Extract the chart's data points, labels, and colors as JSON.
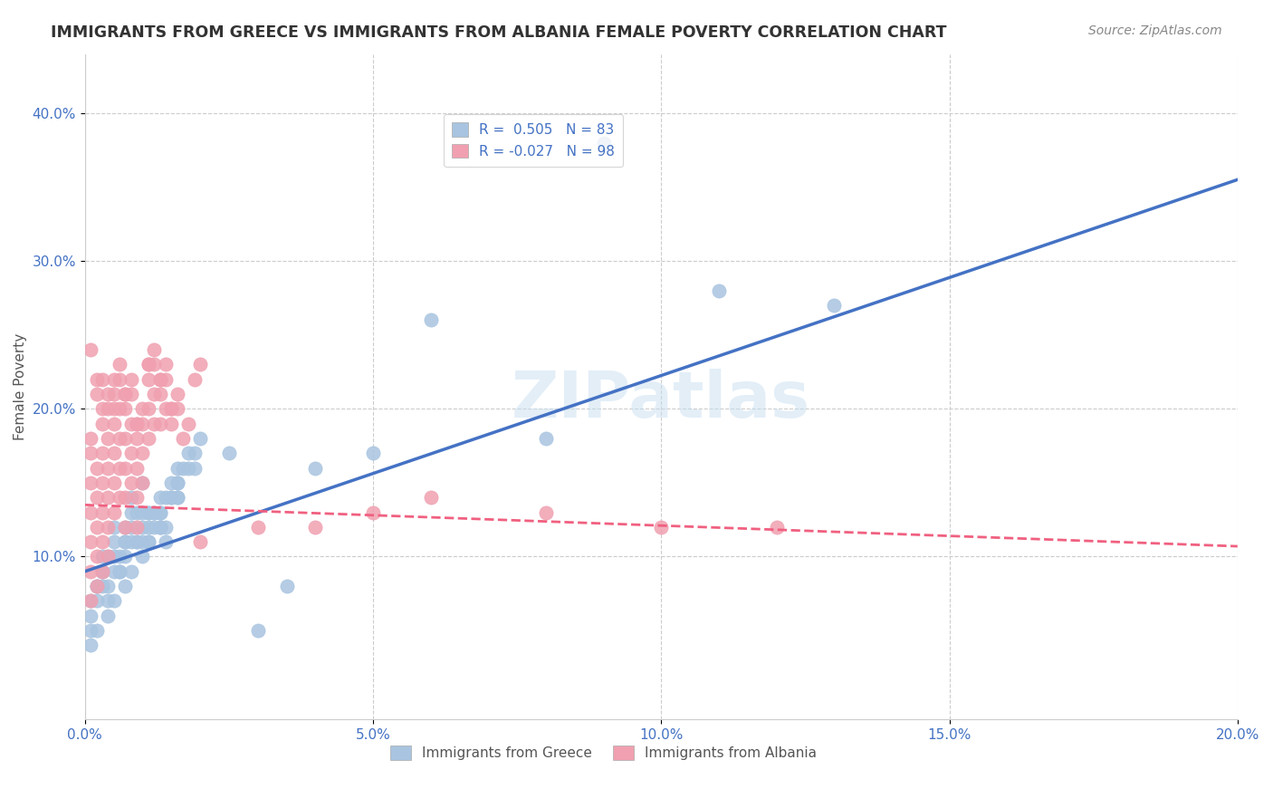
{
  "title": "IMMIGRANTS FROM GREECE VS IMMIGRANTS FROM ALBANIA FEMALE POVERTY CORRELATION CHART",
  "source": "Source: ZipAtlas.com",
  "xlabel": "",
  "ylabel": "Female Poverty",
  "xlim": [
    0.0,
    0.2
  ],
  "ylim": [
    -0.01,
    0.44
  ],
  "xticks": [
    0.0,
    0.05,
    0.1,
    0.15,
    0.2
  ],
  "xticklabels": [
    "0.0%",
    "5.0%",
    "10.0%",
    "15.0%",
    "20.0%"
  ],
  "yticks": [
    0.1,
    0.2,
    0.3,
    0.4
  ],
  "yticklabels": [
    "10.0%",
    "20.0%",
    "30.0%",
    "40.0%"
  ],
  "greece_color": "#a8c4e0",
  "albania_color": "#f0a0b0",
  "greece_line_color": "#4472c4",
  "albania_line_color": "#f06080",
  "R_greece": 0.505,
  "N_greece": 83,
  "R_albania": -0.027,
  "N_albania": 98,
  "legend_label_greece": "Immigrants from Greece",
  "legend_label_albania": "Immigrants from Albania",
  "watermark": "ZIPatlas",
  "background_color": "#ffffff",
  "grid_color": "#cccccc",
  "title_color": "#333333",
  "axis_color": "#4472c4",
  "greece_scatter": {
    "x": [
      0.005,
      0.008,
      0.01,
      0.012,
      0.014,
      0.016,
      0.003,
      0.006,
      0.009,
      0.011,
      0.013,
      0.015,
      0.002,
      0.004,
      0.007,
      0.01,
      0.013,
      0.016,
      0.019,
      0.001,
      0.003,
      0.005,
      0.008,
      0.011,
      0.014,
      0.017,
      0.02,
      0.002,
      0.005,
      0.007,
      0.009,
      0.012,
      0.015,
      0.018,
      0.001,
      0.004,
      0.006,
      0.008,
      0.011,
      0.013,
      0.016,
      0.003,
      0.007,
      0.01,
      0.013,
      0.016,
      0.019,
      0.002,
      0.005,
      0.008,
      0.011,
      0.014,
      0.001,
      0.004,
      0.006,
      0.009,
      0.012,
      0.015,
      0.018,
      0.003,
      0.007,
      0.01,
      0.013,
      0.001,
      0.004,
      0.007,
      0.01,
      0.013,
      0.016,
      0.002,
      0.005,
      0.008,
      0.011,
      0.09,
      0.11,
      0.13,
      0.06,
      0.08,
      0.05,
      0.04,
      0.025,
      0.03,
      0.035
    ],
    "y": [
      0.12,
      0.14,
      0.15,
      0.13,
      0.11,
      0.16,
      0.1,
      0.09,
      0.11,
      0.13,
      0.12,
      0.14,
      0.08,
      0.1,
      0.12,
      0.11,
      0.13,
      0.15,
      0.17,
      0.07,
      0.09,
      0.11,
      0.13,
      0.12,
      0.14,
      0.16,
      0.18,
      0.08,
      0.1,
      0.11,
      0.13,
      0.12,
      0.14,
      0.16,
      0.06,
      0.08,
      0.1,
      0.12,
      0.11,
      0.13,
      0.15,
      0.09,
      0.11,
      0.13,
      0.12,
      0.14,
      0.16,
      0.07,
      0.09,
      0.11,
      0.13,
      0.12,
      0.05,
      0.07,
      0.09,
      0.11,
      0.13,
      0.15,
      0.17,
      0.08,
      0.1,
      0.12,
      0.14,
      0.04,
      0.06,
      0.08,
      0.1,
      0.12,
      0.14,
      0.05,
      0.07,
      0.09,
      0.11,
      0.38,
      0.28,
      0.27,
      0.26,
      0.18,
      0.17,
      0.16,
      0.17,
      0.05,
      0.08
    ]
  },
  "albania_scatter": {
    "x": [
      0.002,
      0.004,
      0.006,
      0.008,
      0.01,
      0.012,
      0.014,
      0.016,
      0.001,
      0.003,
      0.005,
      0.007,
      0.009,
      0.011,
      0.013,
      0.015,
      0.001,
      0.003,
      0.005,
      0.007,
      0.009,
      0.011,
      0.013,
      0.015,
      0.002,
      0.004,
      0.006,
      0.008,
      0.01,
      0.012,
      0.014,
      0.001,
      0.003,
      0.005,
      0.007,
      0.009,
      0.011,
      0.013,
      0.002,
      0.004,
      0.006,
      0.008,
      0.01,
      0.012,
      0.001,
      0.003,
      0.005,
      0.007,
      0.009,
      0.011,
      0.002,
      0.004,
      0.006,
      0.008,
      0.001,
      0.003,
      0.005,
      0.007,
      0.009,
      0.002,
      0.004,
      0.006,
      0.001,
      0.003,
      0.005,
      0.007,
      0.002,
      0.004,
      0.001,
      0.003,
      0.002,
      0.004,
      0.006,
      0.008,
      0.01,
      0.012,
      0.014,
      0.016,
      0.018,
      0.02,
      0.001,
      0.003,
      0.005,
      0.007,
      0.009,
      0.011,
      0.013,
      0.015,
      0.017,
      0.019,
      0.06,
      0.08,
      0.1,
      0.12,
      0.05,
      0.04,
      0.03,
      0.02
    ],
    "y": [
      0.21,
      0.2,
      0.22,
      0.21,
      0.19,
      0.23,
      0.22,
      0.2,
      0.18,
      0.2,
      0.22,
      0.21,
      0.19,
      0.23,
      0.22,
      0.2,
      0.17,
      0.19,
      0.21,
      0.2,
      0.18,
      0.22,
      0.21,
      0.19,
      0.16,
      0.18,
      0.2,
      0.19,
      0.17,
      0.21,
      0.2,
      0.15,
      0.17,
      0.19,
      0.18,
      0.16,
      0.2,
      0.19,
      0.14,
      0.16,
      0.18,
      0.17,
      0.15,
      0.19,
      0.13,
      0.15,
      0.17,
      0.16,
      0.14,
      0.18,
      0.12,
      0.14,
      0.16,
      0.15,
      0.11,
      0.13,
      0.15,
      0.14,
      0.12,
      0.1,
      0.12,
      0.14,
      0.09,
      0.11,
      0.13,
      0.12,
      0.08,
      0.1,
      0.07,
      0.09,
      0.22,
      0.21,
      0.23,
      0.22,
      0.2,
      0.24,
      0.23,
      0.21,
      0.19,
      0.23,
      0.24,
      0.22,
      0.2,
      0.21,
      0.19,
      0.23,
      0.22,
      0.2,
      0.18,
      0.22,
      0.14,
      0.13,
      0.12,
      0.12,
      0.13,
      0.12,
      0.12,
      0.11
    ]
  },
  "greece_line": {
    "x0": 0.0,
    "x1": 0.2,
    "y0": 0.09,
    "y1": 0.355
  },
  "albania_line": {
    "x0": 0.0,
    "x1": 0.2,
    "y0": 0.135,
    "y1": 0.107
  }
}
